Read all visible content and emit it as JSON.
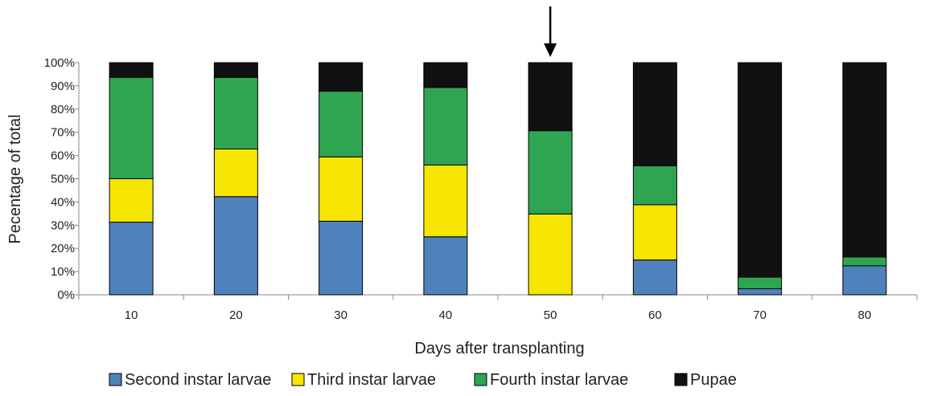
{
  "chart_data": {
    "type": "bar",
    "stacked": true,
    "percent": true,
    "title": "",
    "xlabel": "Days after transplanting",
    "ylabel": "Pecentage of total",
    "ylim": [
      0,
      100
    ],
    "yticks": [
      "0%",
      "10%",
      "20%",
      "30%",
      "40%",
      "50%",
      "60%",
      "70%",
      "80%",
      "90%",
      "100%"
    ],
    "categories": [
      "10",
      "20",
      "30",
      "40",
      "50",
      "60",
      "70",
      "80"
    ],
    "series": [
      {
        "name": "Second instar larvae",
        "color": "#4f81bd",
        "values": [
          31.3,
          42.3,
          31.7,
          25.0,
          0.0,
          15.0,
          2.6,
          12.5
        ]
      },
      {
        "name": "Third instar larvae",
        "color": "#f6e500",
        "values": [
          18.7,
          20.5,
          27.7,
          30.9,
          34.8,
          23.8,
          0.0,
          0.0
        ]
      },
      {
        "name": "Fourth instar larvae",
        "color": "#2fa551",
        "values": [
          43.7,
          30.8,
          28.3,
          33.4,
          35.9,
          16.8,
          5.0,
          3.8
        ]
      },
      {
        "name": "Pupae",
        "color": "#111111",
        "values": [
          6.3,
          6.4,
          12.3,
          10.7,
          29.3,
          44.4,
          92.4,
          83.7
        ]
      }
    ],
    "annotation": {
      "type": "arrow",
      "category": "50",
      "direction": "down"
    },
    "legend": "bottom",
    "grid": false
  }
}
